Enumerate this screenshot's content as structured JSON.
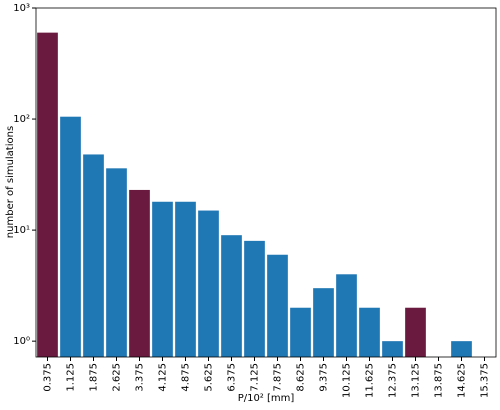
{
  "chart_data": {
    "type": "bar",
    "x_label": "P/10² [mm]",
    "y_label": "number of simulations",
    "categories": [
      "0.375",
      "1.125",
      "1.875",
      "2.625",
      "3.375",
      "4.125",
      "4.875",
      "5.625",
      "6.375",
      "7.125",
      "7.875",
      "8.625",
      "9.375",
      "10.125",
      "11.625",
      "12.375",
      "13.125",
      "13.875",
      "14.625",
      "15.375"
    ],
    "values": [
      600,
      105,
      48,
      36,
      23,
      18,
      18,
      15,
      9,
      8,
      6,
      2,
      3,
      4,
      2,
      1,
      2,
      null,
      1,
      null
    ],
    "colors": [
      "#6b1a3f",
      "#1f77b4",
      "#1f77b4",
      "#1f77b4",
      "#6b1a3f",
      "#1f77b4",
      "#1f77b4",
      "#1f77b4",
      "#1f77b4",
      "#1f77b4",
      "#1f77b4",
      "#1f77b4",
      "#1f77b4",
      "#1f77b4",
      "#1f77b4",
      "#1f77b4",
      "#6b1a3f",
      "#1f77b4",
      "#1f77b4",
      "#1f77b4"
    ],
    "log_y": true,
    "ylim": [
      0.72,
      1000
    ],
    "yticks": [
      {
        "value": 1,
        "label": "10⁰"
      },
      {
        "value": 10,
        "label": "10¹"
      },
      {
        "value": 100,
        "label": "10²"
      },
      {
        "value": 1000,
        "label": "10³"
      }
    ],
    "grid": false
  }
}
